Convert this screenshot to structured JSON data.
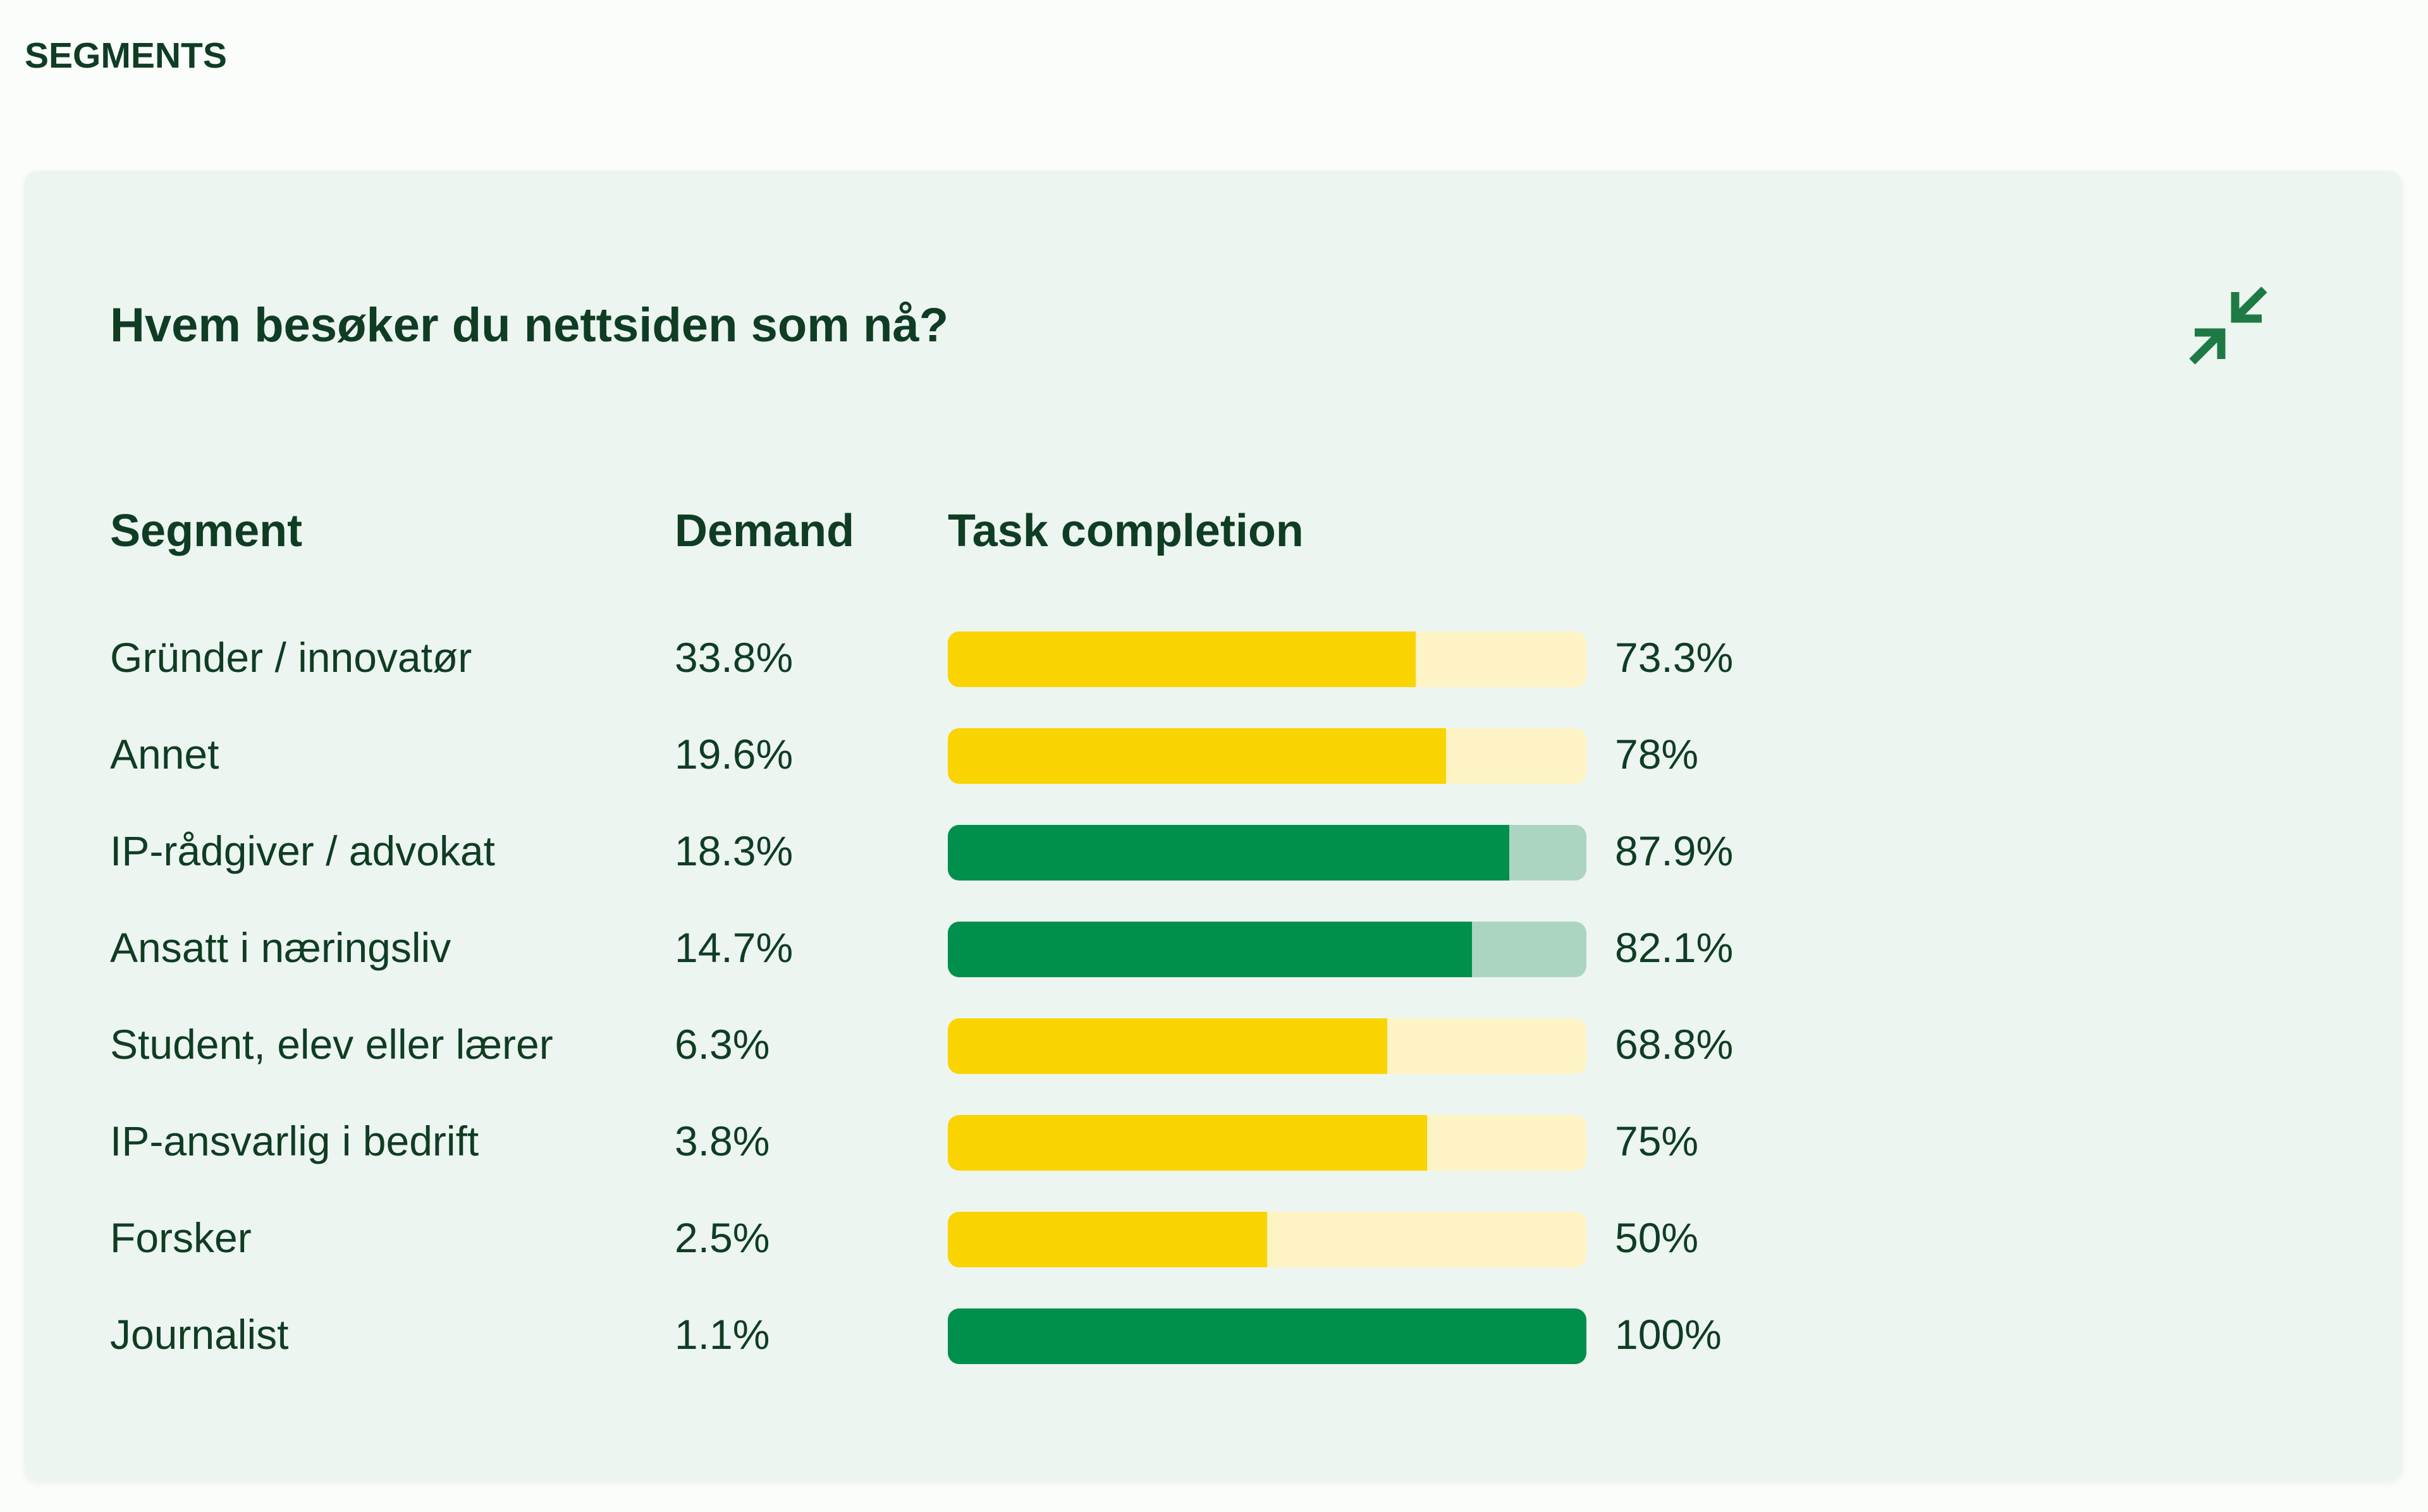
{
  "section_label": "SEGMENTS",
  "card": {
    "title": "Hvem besøker du nettsiden som nå?",
    "collapse_icon": "collapse-arrows-icon"
  },
  "table": {
    "headers": {
      "segment": "Segment",
      "demand": "Demand",
      "task_completion": "Task completion"
    },
    "rows": [
      {
        "segment": "Gründer / innovatør",
        "demand": "33.8%",
        "completion_label": "73.3%",
        "completion": 73.3,
        "status": "warn"
      },
      {
        "segment": "Annet",
        "demand": "19.6%",
        "completion_label": "78%",
        "completion": 78,
        "status": "warn"
      },
      {
        "segment": "IP-rådgiver / advokat",
        "demand": "18.3%",
        "completion_label": "87.9%",
        "completion": 87.9,
        "status": "good"
      },
      {
        "segment": "Ansatt i næringsliv",
        "demand": "14.7%",
        "completion_label": "82.1%",
        "completion": 82.1,
        "status": "good"
      },
      {
        "segment": "Student, elev eller lærer",
        "demand": "6.3%",
        "completion_label": "68.8%",
        "completion": 68.8,
        "status": "warn"
      },
      {
        "segment": "IP-ansvarlig i bedrift",
        "demand": "3.8%",
        "completion_label": "75%",
        "completion": 75,
        "status": "warn"
      },
      {
        "segment": "Forsker",
        "demand": "2.5%",
        "completion_label": "50%",
        "completion": 50,
        "status": "warn"
      },
      {
        "segment": "Journalist",
        "demand": "1.1%",
        "completion_label": "100%",
        "completion": 100,
        "status": "good"
      }
    ]
  },
  "colors": {
    "warn_fill": "#f9d400",
    "warn_track": "#fdf3c4",
    "good_fill": "#008f4c",
    "good_track": "#acd5c1",
    "text": "#0f3d24",
    "icon": "#1e7a45"
  }
}
